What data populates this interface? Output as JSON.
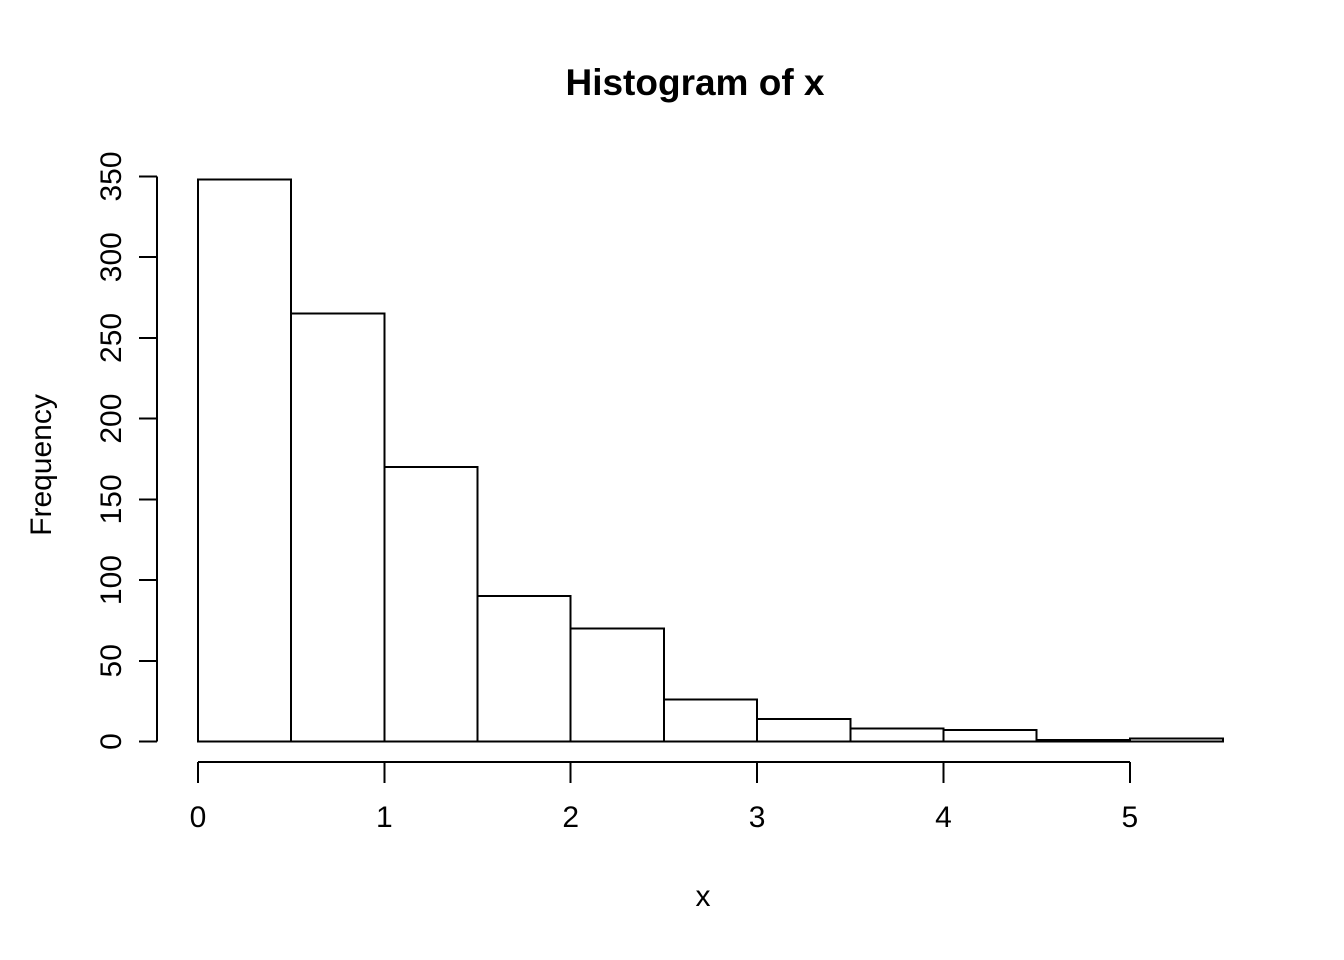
{
  "chart_data": {
    "type": "bar",
    "chart_kind": "histogram",
    "title": "Histogram of x",
    "xlabel": "x",
    "ylabel": "Frequency",
    "bin_edges": [
      0,
      0.5,
      1,
      1.5,
      2,
      2.5,
      3,
      3.5,
      4,
      4.5,
      5,
      5.5
    ],
    "counts": [
      348,
      265,
      170,
      90,
      70,
      26,
      14,
      8,
      7,
      1,
      2
    ],
    "x_ticks": [
      "0",
      "1",
      "2",
      "3",
      "4",
      "5"
    ],
    "x_tick_values": [
      0,
      1,
      2,
      3,
      4,
      5
    ],
    "y_ticks": [
      "0",
      "50",
      "100",
      "150",
      "200",
      "250",
      "300",
      "350"
    ],
    "y_tick_values": [
      0,
      50,
      100,
      150,
      200,
      250,
      300,
      350
    ],
    "xlim": [
      0,
      5.5
    ],
    "ylim": [
      0,
      350
    ],
    "grid": false,
    "legend": null,
    "bar_fill": "#ffffff",
    "bar_stroke": "#000000",
    "axis_color": "#000000",
    "text_color": "#000000",
    "background": "#ffffff"
  }
}
